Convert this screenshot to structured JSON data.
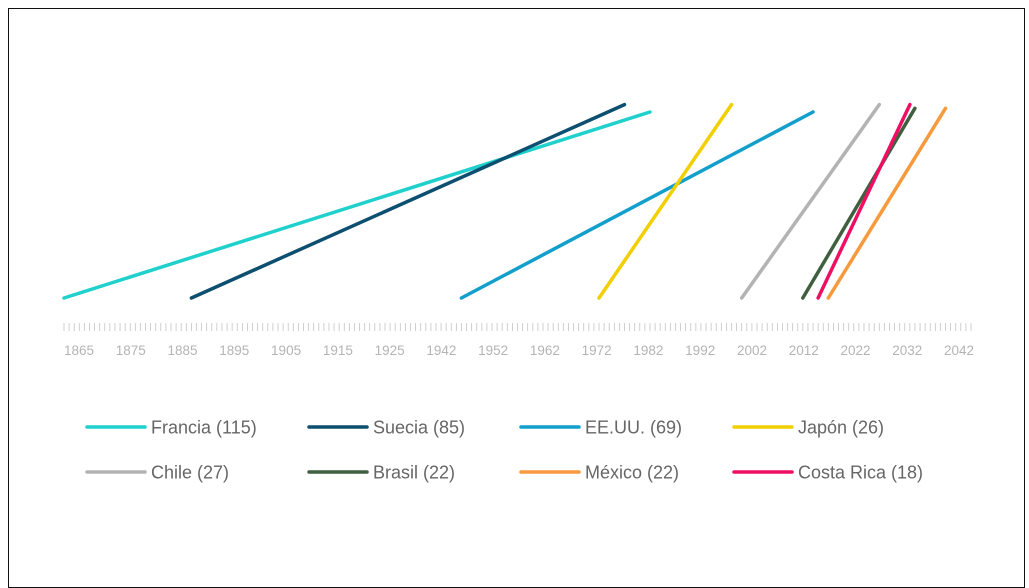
{
  "chart_data": {
    "type": "line",
    "title": "",
    "xlabel": "",
    "ylabel": "",
    "x_ticks": [
      1865,
      1875,
      1885,
      1895,
      1905,
      1915,
      1925,
      1942,
      1952,
      1962,
      1972,
      1982,
      1992,
      2002,
      2012,
      2022,
      2032,
      2042
    ],
    "xlim": [
      1865,
      2043
    ],
    "ylim": [
      0,
      1
    ],
    "grid": false,
    "legend_position": "bottom",
    "series": [
      {
        "name": "Francia (115)",
        "color": "#1fd0cd",
        "x": [
          1865,
          1980
        ],
        "y": [
          0,
          1
        ]
      },
      {
        "name": "Suecia (85)",
        "color": "#0d4f70",
        "x": [
          1890,
          1975
        ],
        "y": [
          0,
          1.04
        ]
      },
      {
        "name": "EE.UU. (69)",
        "color": "#129fcc",
        "x": [
          1943,
          2012
        ],
        "y": [
          0,
          1
        ]
      },
      {
        "name": "Japón (26)",
        "color": "#f2cf00",
        "x": [
          1970,
          1996
        ],
        "y": [
          0,
          1.04
        ]
      },
      {
        "name": "Chile (27)",
        "color": "#b3b3b3",
        "x": [
          1998,
          2025
        ],
        "y": [
          0,
          1.04
        ]
      },
      {
        "name": "Brasil (22)",
        "color": "#3f5f3f",
        "x": [
          2010,
          2032
        ],
        "y": [
          0,
          1.02
        ]
      },
      {
        "name": "México (22)",
        "color": "#f79a3e",
        "x": [
          2015,
          2038
        ],
        "y": [
          0,
          1.02
        ]
      },
      {
        "name": "Costa Rica (18)",
        "color": "#ee0f63",
        "x": [
          2013,
          2031
        ],
        "y": [
          0,
          1.04
        ]
      }
    ]
  }
}
